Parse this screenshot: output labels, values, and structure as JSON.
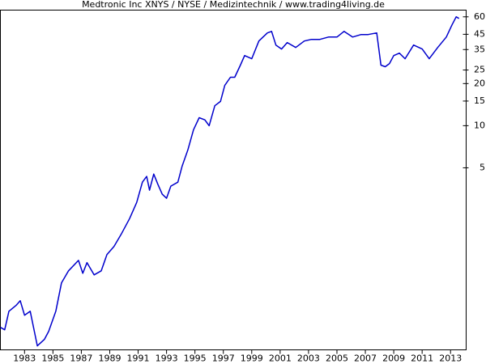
{
  "chart_data": {
    "type": "line",
    "title": "Medtronic Inc XNYS / NYSE / Medizintechnik / www.trading4living.de",
    "log_scale": true,
    "color": "#0000cc",
    "xlim": [
      1981.3,
      2014.1
    ],
    "ylim": [
      0.25,
      67
    ],
    "xticks": [
      1983,
      1985,
      1987,
      1989,
      1991,
      1993,
      1995,
      1997,
      1999,
      2001,
      2003,
      2005,
      2007,
      2009,
      2011,
      2013
    ],
    "yticks": [
      5,
      10,
      15,
      20,
      25,
      35,
      45,
      60
    ],
    "x": [
      1981.3,
      1981.6,
      1981.9,
      1982.4,
      1982.7,
      1983.0,
      1983.4,
      1983.9,
      1984.4,
      1984.7,
      1985.2,
      1985.6,
      1986.1,
      1986.8,
      1987.1,
      1987.4,
      1987.9,
      1988.4,
      1988.8,
      1989.3,
      1989.8,
      1990.4,
      1990.9,
      1991.3,
      1991.6,
      1991.8,
      1992.1,
      1992.4,
      1992.7,
      1993.0,
      1993.3,
      1993.8,
      1994.1,
      1994.5,
      1994.9,
      1995.3,
      1995.7,
      1996.0,
      1996.4,
      1996.8,
      1997.1,
      1997.5,
      1997.8,
      1998.2,
      1998.5,
      1999.0,
      1999.5,
      2000.1,
      2000.4,
      2000.7,
      2001.1,
      2001.5,
      2002.1,
      2002.7,
      2003.2,
      2003.8,
      2004.4,
      2005.0,
      2005.5,
      2006.1,
      2006.7,
      2007.2,
      2007.8,
      2008.1,
      2008.4,
      2008.7,
      2009.0,
      2009.4,
      2009.8,
      2010.4,
      2011.0,
      2011.5,
      2012.1,
      2012.7,
      2013.1,
      2013.4,
      2013.6
    ],
    "values": [
      0.362,
      0.348,
      0.472,
      0.519,
      0.561,
      0.442,
      0.472,
      0.267,
      0.297,
      0.339,
      0.472,
      0.752,
      0.918,
      1.09,
      0.881,
      1.05,
      0.859,
      0.918,
      1.2,
      1.37,
      1.67,
      2.17,
      2.83,
      3.95,
      4.34,
      3.46,
      4.51,
      3.79,
      3.24,
      3.03,
      3.7,
      3.95,
      5.15,
      6.71,
      9.36,
      11.4,
      11.0,
      10,
      13.9,
      14.9,
      19.4,
      22.2,
      22.2,
      27.1,
      31.7,
      30.1,
      40.3,
      46.0,
      47.2,
      37.7,
      35.3,
      39.3,
      36.2,
      40.3,
      41.4,
      41.4,
      43.0,
      43.0,
      47.2,
      43.0,
      44.8,
      44.8,
      46.0,
      27.1,
      26.4,
      27.8,
      31.7,
      33.0,
      30.1,
      37.7,
      35.3,
      30.1,
      36.2,
      43.0,
      52.5,
      60.0,
      58.4
    ]
  }
}
